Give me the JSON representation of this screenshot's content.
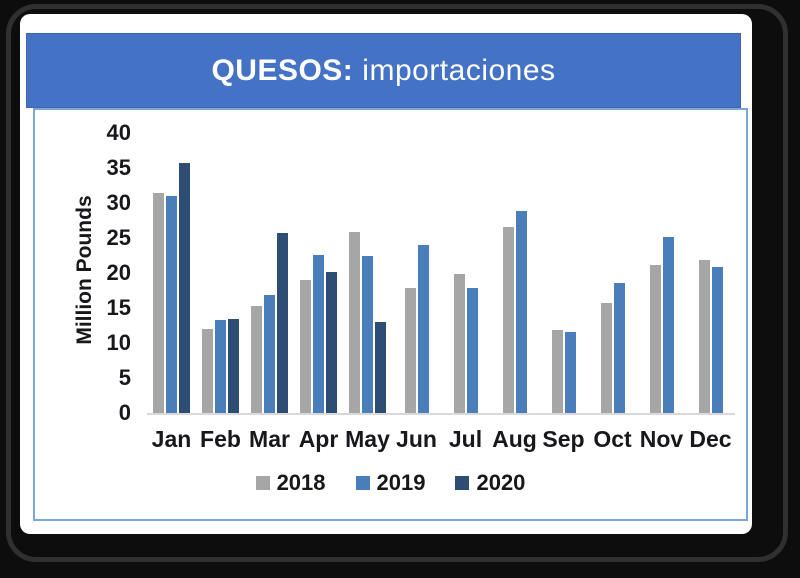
{
  "window": {
    "title_bold": "QUESOS:",
    "title_regular": "importaciones"
  },
  "chart_data": {
    "type": "bar",
    "title": "QUESOS: importaciones",
    "xlabel": "",
    "ylabel": "Million Pounds",
    "ylim": [
      0,
      40
    ],
    "yticks": [
      0,
      5,
      10,
      15,
      20,
      25,
      30,
      35,
      40
    ],
    "grid": false,
    "legend_position": "bottom",
    "categories": [
      "Jan",
      "Feb",
      "Mar",
      "Apr",
      "May",
      "Jun",
      "Jul",
      "Aug",
      "Sep",
      "Oct",
      "Nov",
      "Dec"
    ],
    "series": [
      {
        "name": "2018",
        "color": "#a6a6a6",
        "values": [
          31.4,
          12.0,
          15.3,
          19.0,
          25.9,
          17.8,
          19.8,
          26.6,
          11.9,
          15.7,
          21.1,
          21.9
        ]
      },
      {
        "name": "2019",
        "color": "#4a7ebb",
        "values": [
          31.0,
          13.3,
          16.9,
          22.6,
          22.5,
          24.0,
          17.8,
          28.9,
          11.6,
          18.6,
          25.2,
          20.8
        ]
      },
      {
        "name": "2020",
        "color": "#2e4d74",
        "values": [
          35.7,
          13.4,
          25.7,
          20.1,
          13.0,
          null,
          null,
          null,
          null,
          null,
          null,
          null
        ]
      }
    ]
  },
  "colors": {
    "banner": "#4472c4",
    "chart_border": "#7aa6d9",
    "axis_line": "#d9d9d9",
    "text": "#18181c",
    "frame": "#303030"
  }
}
